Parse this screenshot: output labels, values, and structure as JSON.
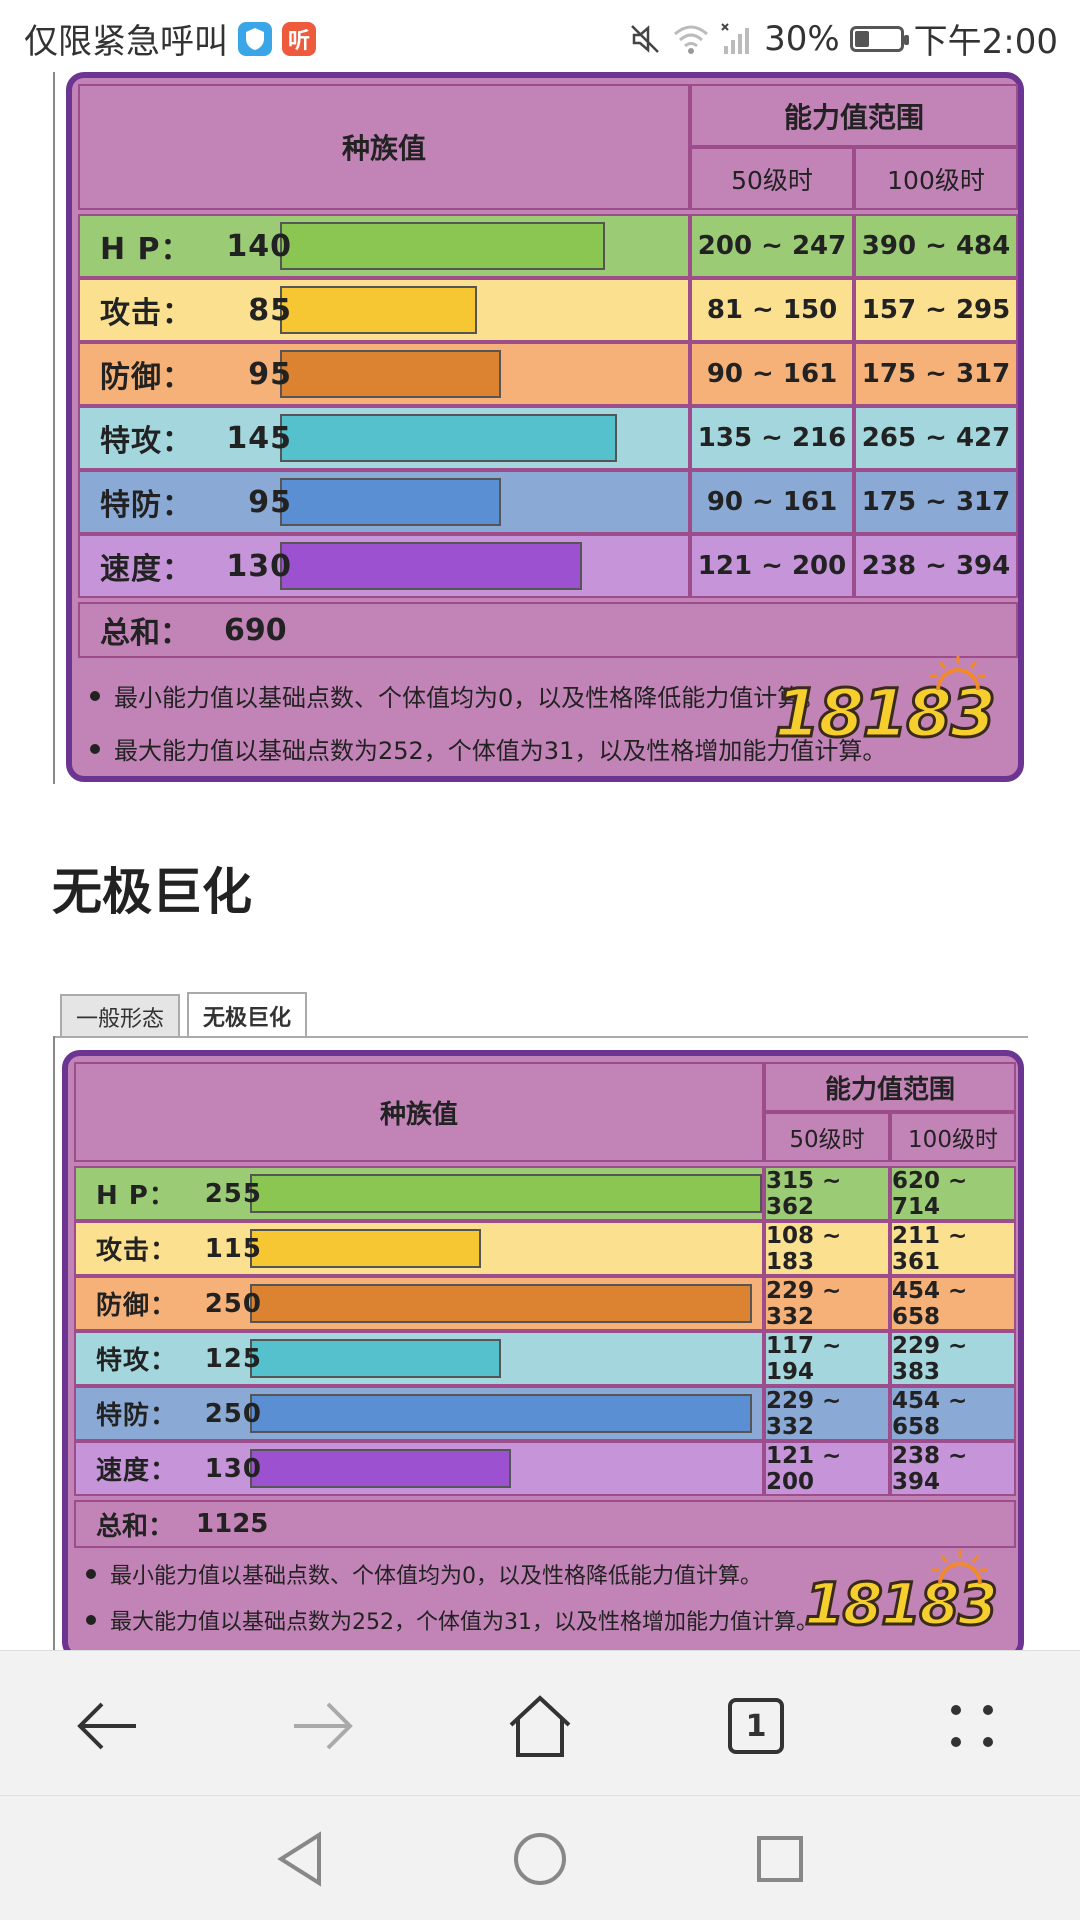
{
  "status_bar": {
    "left_text": "仅限紧急呼叫",
    "app_icons": [
      "shield-app-icon",
      "listen-app-icon"
    ],
    "listen_badge": "听",
    "battery": "30%",
    "time": "下午2:00"
  },
  "colors": {
    "panel_bg": "#c283b7",
    "panel_border": "#6b3591",
    "hp_bar": "#8bc653",
    "hp_row": "#9ccb76",
    "atk_bar": "#f7c633",
    "atk_row": "#fbe08f",
    "def_bar": "#dc8332",
    "def_row": "#f5b178",
    "spa_bar": "#54c1cc",
    "spa_row": "#a3d7dd",
    "spd_bar": "#5a8fd3",
    "spd_row": "#8aa9d5",
    "spe_bar": "#9b51d0",
    "spe_row": "#c594d9"
  },
  "table1": {
    "base_header": "种族值",
    "range_header": "能力值范围",
    "lv50_header": "50级时",
    "lv100_header": "100级时",
    "stats": [
      {
        "label": "H P：",
        "value": "140",
        "lv50": "200 ~ 247",
        "lv100": "390 ~ 484"
      },
      {
        "label": "攻击：",
        "value": "85",
        "lv50": "81 ~ 150",
        "lv100": "157 ~ 295"
      },
      {
        "label": "防御：",
        "value": "95",
        "lv50": "90 ~ 161",
        "lv100": "175 ~ 317"
      },
      {
        "label": "特攻：",
        "value": "145",
        "lv50": "135 ~ 216",
        "lv100": "265 ~ 427"
      },
      {
        "label": "特防：",
        "value": "95",
        "lv50": "90 ~ 161",
        "lv100": "175 ~ 317"
      },
      {
        "label": "速度：",
        "value": "130",
        "lv50": "121 ~ 200",
        "lv100": "238 ~ 394"
      }
    ],
    "total_label": "总和：",
    "total_value": "690",
    "notes": [
      "最小能力值以基础点数、个体值均为0，以及性格降低能力值计算。",
      "最大能力值以基础点数为252，个体值为31，以及性格增加能力值计算。"
    ]
  },
  "section_title": "无极巨化",
  "tabs": [
    {
      "label": "一般形态",
      "active": false
    },
    {
      "label": "无极巨化",
      "active": true
    }
  ],
  "table2": {
    "base_header": "种族值",
    "range_header": "能力值范围",
    "lv50_header": "50级时",
    "lv100_header": "100级时",
    "stats": [
      {
        "label": "H P：",
        "value": "255",
        "lv50": "315 ~ 362",
        "lv100": "620 ~ 714"
      },
      {
        "label": "攻击：",
        "value": "115",
        "lv50": "108 ~ 183",
        "lv100": "211 ~ 361"
      },
      {
        "label": "防御：",
        "value": "250",
        "lv50": "229 ~ 332",
        "lv100": "454 ~ 658"
      },
      {
        "label": "特攻：",
        "value": "125",
        "lv50": "117 ~ 194",
        "lv100": "229 ~ 383"
      },
      {
        "label": "特防：",
        "value": "250",
        "lv50": "229 ~ 332",
        "lv100": "454 ~ 658"
      },
      {
        "label": "速度：",
        "value": "130",
        "lv50": "121 ~ 200",
        "lv100": "238 ~ 394"
      }
    ],
    "total_label": "总和：",
    "total_value": "1125",
    "notes": [
      "最小能力值以基础点数、个体值均为0，以及性格降低能力值计算。",
      "最大能力值以基础点数为252，个体值为31，以及性格增加能力值计算。"
    ]
  },
  "watermark": "18183",
  "browser_bar": {
    "back_icon": "arrow-left-icon",
    "forward_icon": "arrow-right-icon",
    "home_icon": "home-icon",
    "tabs_count": "1",
    "menu_icon": "dots-menu-icon"
  },
  "nav_bar": [
    "triangle-back-icon",
    "circle-home-icon",
    "square-recents-icon"
  ]
}
